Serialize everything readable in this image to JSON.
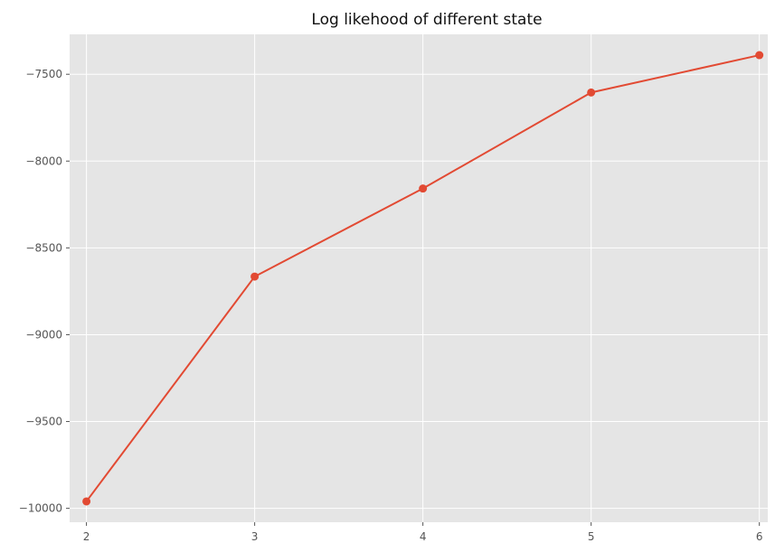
{
  "chart_data": {
    "type": "line",
    "title": "Log likehood of different state",
    "xlabel": "",
    "ylabel": "",
    "x": [
      2,
      3,
      4,
      5,
      6
    ],
    "series": [
      {
        "values": [
          -9960,
          -8665,
          -8158,
          -7605,
          -7390
        ]
      }
    ],
    "xlim": [
      1.9,
      6.05
    ],
    "ylim": [
      -10080,
      -7270
    ],
    "xticks": [
      2,
      3,
      4,
      5,
      6
    ],
    "xtick_labels": [
      "2",
      "3",
      "4",
      "5",
      "6"
    ],
    "yticks": [
      -7500,
      -8000,
      -8500,
      -9000,
      -9500,
      -10000
    ],
    "ytick_labels": [
      "−7500",
      "−8000",
      "−8500",
      "−9000",
      "−9500",
      "−10000"
    ],
    "grid": true,
    "legend": "none",
    "colors": {
      "line": "#E24A33",
      "plot_background": "#E5E5E5",
      "grid": "#FFFFFF"
    }
  }
}
